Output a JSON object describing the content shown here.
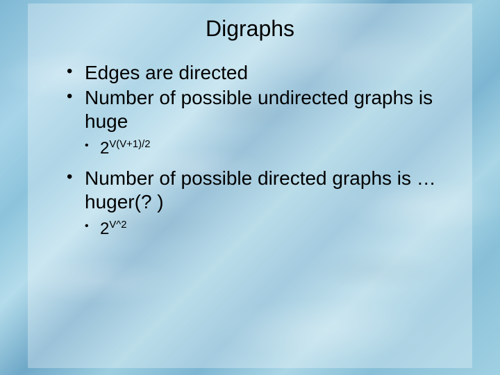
{
  "slide": {
    "title": "Digraphs",
    "background_color_overlay": "rgba(255,255,255,0.30)",
    "water_palette": [
      "#7fb8d4",
      "#a8d4e8",
      "#8cc4dc",
      "#b4dceb",
      "#6fa8c8",
      "#9ccee0"
    ],
    "title_fontsize": 32,
    "body_fontsize": 28,
    "sub_fontsize": 24,
    "text_color": "#000000",
    "bullets": [
      {
        "text": "Edges are directed"
      },
      {
        "text": "Number of possible undirected graphs is huge",
        "sub": [
          {
            "base": "2",
            "exp": "V(V+1)/2"
          }
        ]
      },
      {
        "text": "Number of possible directed graphs is … huger(? )",
        "sub": [
          {
            "base": "2",
            "exp": "V^2"
          }
        ]
      }
    ]
  }
}
